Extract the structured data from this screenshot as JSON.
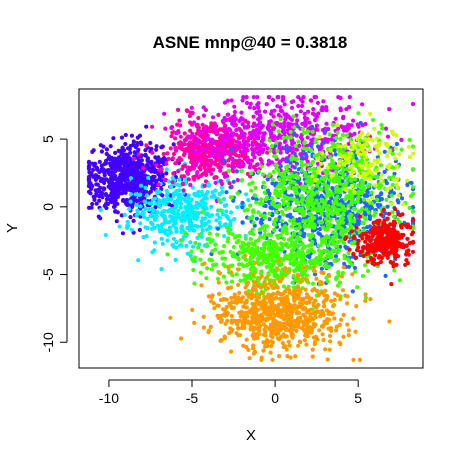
{
  "chart_data": {
    "type": "scatter",
    "title": "ASNE mnp@40 = 0.3818",
    "xlabel": "X",
    "ylabel": "Y",
    "xlim": [
      -11.8,
      8.9
    ],
    "ylim": [
      -11.9,
      8.7
    ],
    "xticks": [
      -10,
      -5,
      0,
      5
    ],
    "yticks": [
      -10,
      -5,
      0,
      5
    ],
    "xtick_labels": [
      "-10",
      "-5",
      "0",
      "5"
    ],
    "ytick_labels": [
      "-10",
      "-5",
      "0",
      "5"
    ],
    "grid": false,
    "legend": "none",
    "clusters": [
      {
        "color": "#4400ff",
        "center": [
          -8.8,
          2.2
        ],
        "spread": [
          1.3,
          1.3
        ],
        "count": 650
      },
      {
        "color": "#00eeff",
        "center": [
          -5.5,
          -0.4
        ],
        "spread": [
          1.6,
          1.2
        ],
        "count": 420
      },
      {
        "color": "#ff00aa",
        "center": [
          -3.8,
          4.3
        ],
        "spread": [
          1.4,
          1.1
        ],
        "count": 550
      },
      {
        "color": "#dd00ff",
        "center": [
          0.5,
          5.2
        ],
        "spread": [
          2.5,
          1.6
        ],
        "count": 520
      },
      {
        "color": "#1e66ff",
        "center": [
          3.2,
          0.0
        ],
        "spread": [
          2.3,
          2.2
        ],
        "count": 700
      },
      {
        "color": "#44ff00",
        "center": [
          2.8,
          1.0
        ],
        "spread": [
          2.2,
          2.3
        ],
        "count": 650
      },
      {
        "color": "#44ff00",
        "center": [
          0.3,
          -3.8
        ],
        "spread": [
          2.2,
          1.2
        ],
        "count": 520
      },
      {
        "color": "#ff9900",
        "center": [
          0.2,
          -7.9
        ],
        "spread": [
          2.0,
          1.4
        ],
        "count": 700
      },
      {
        "color": "#ff0000",
        "center": [
          6.6,
          -2.6
        ],
        "spread": [
          0.8,
          0.8
        ],
        "count": 320
      },
      {
        "color": "#ccff00",
        "center": [
          5.4,
          3.5
        ],
        "spread": [
          1.3,
          1.5
        ],
        "count": 130
      }
    ]
  }
}
